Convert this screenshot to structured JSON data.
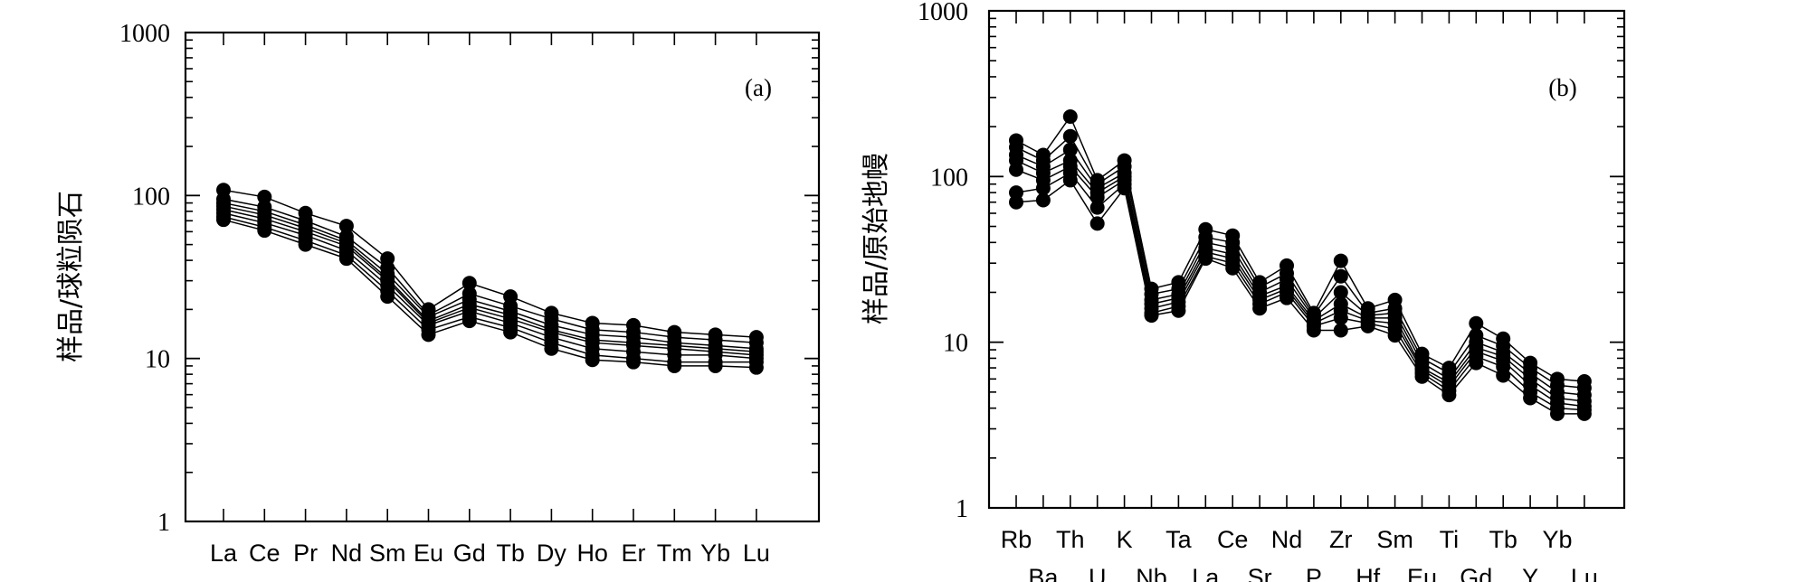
{
  "chart_data": [
    {
      "type": "line",
      "panel_label": "(a)",
      "ylabel": "样品/球粒陨石",
      "xlabel": "",
      "yscale": "log",
      "ylim": [
        1,
        1000
      ],
      "yticks": [
        "1",
        "10",
        "100",
        "1000"
      ],
      "categories": [
        "La",
        "Ce",
        "Pr",
        "Nd",
        "Sm",
        "Eu",
        "Gd",
        "Tb",
        "Dy",
        "Ho",
        "Er",
        "Tm",
        "Yb",
        "Lu"
      ],
      "series": [
        {
          "values": [
            108,
            98,
            78,
            65,
            41,
            20,
            29,
            24,
            19,
            16.5,
            16,
            14.5,
            14,
            13.5
          ]
        },
        {
          "values": [
            95,
            85,
            70,
            56,
            36,
            18.5,
            25,
            21,
            17.5,
            15,
            14.5,
            13.5,
            13,
            12.5
          ]
        },
        {
          "values": [
            90,
            80,
            66,
            53,
            33,
            18,
            23,
            19.5,
            16,
            14,
            13.5,
            12.5,
            12,
            11.5
          ]
        },
        {
          "values": [
            86,
            76,
            63,
            51,
            31,
            17,
            21.5,
            18.5,
            15,
            13,
            12.5,
            12,
            11.5,
            11
          ]
        },
        {
          "values": [
            82,
            72,
            60,
            49,
            30,
            16.5,
            20.5,
            17.5,
            14.5,
            12.5,
            12,
            11.5,
            11,
            10.5
          ]
        },
        {
          "values": [
            78,
            68,
            57,
            46,
            28,
            16,
            19.5,
            16.5,
            13.5,
            11.5,
            11,
            10.5,
            10.5,
            10
          ]
        },
        {
          "values": [
            74,
            64,
            53,
            43,
            26,
            15,
            18,
            15.5,
            12.5,
            10.5,
            10,
            9.5,
            9.5,
            9.5
          ]
        },
        {
          "values": [
            71,
            61,
            50,
            41,
            24,
            14,
            17,
            14.5,
            11.5,
            9.8,
            9.5,
            9,
            9,
            8.8
          ]
        }
      ]
    },
    {
      "type": "line",
      "panel_label": "(b)",
      "ylabel": "样品/原始地幔",
      "xlabel": "",
      "yscale": "log",
      "ylim": [
        1,
        1000
      ],
      "yticks": [
        "1",
        "10",
        "100",
        "1000"
      ],
      "categories": [
        "Rb",
        "Ba",
        "Th",
        "U",
        "K",
        "Nb",
        "Ta",
        "La",
        "Ce",
        "Sr",
        "Nd",
        "P",
        "Zr",
        "Hf",
        "Sm",
        "Eu",
        "Ti",
        "Gd",
        "Tb",
        "Y",
        "Yb",
        "Lu"
      ],
      "series": [
        {
          "values": [
            165,
            135,
            230,
            95,
            125,
            21,
            23,
            48,
            44,
            23,
            29,
            15,
            31,
            16,
            18,
            8.5,
            7,
            13,
            10.5,
            7.5,
            6,
            5.8
          ]
        },
        {
          "values": [
            150,
            125,
            175,
            90,
            115,
            19.5,
            21,
            43,
            40,
            21.5,
            26,
            14.5,
            25,
            15,
            16,
            8,
            6.5,
            11,
            9.5,
            7,
            5.5,
            5.3
          ]
        },
        {
          "values": [
            135,
            115,
            145,
            85,
            105,
            18,
            19.5,
            40,
            37,
            20,
            24,
            14,
            20,
            14.5,
            15,
            7.5,
            6,
            10,
            8.7,
            6.5,
            5,
            4.8
          ]
        },
        {
          "values": [
            125,
            105,
            125,
            80,
            100,
            17,
            18.5,
            37,
            34,
            19,
            22,
            13.5,
            17,
            14,
            14,
            7,
            5.7,
            9.3,
            8.2,
            6,
            4.6,
            4.4
          ]
        },
        {
          "values": [
            110,
            95,
            115,
            75,
            95,
            16,
            17.5,
            35,
            32,
            18,
            21,
            13,
            15.5,
            13.5,
            13,
            6.8,
            5.4,
            8.8,
            7.7,
            5.5,
            4.3,
            4.1
          ]
        },
        {
          "values": [
            80,
            85,
            105,
            65,
            90,
            15,
            16.5,
            33,
            30,
            17,
            20,
            12.5,
            14,
            13,
            12,
            6.5,
            5.1,
            8.2,
            7.1,
            5,
            4,
            3.9
          ]
        },
        {
          "values": [
            70,
            72,
            95,
            52,
            85,
            14.5,
            15.5,
            32,
            28,
            16,
            18.5,
            11.8,
            11.8,
            12.5,
            11,
            6.2,
            4.8,
            7.5,
            6.3,
            4.6,
            3.7,
            3.7
          ]
        }
      ]
    }
  ]
}
